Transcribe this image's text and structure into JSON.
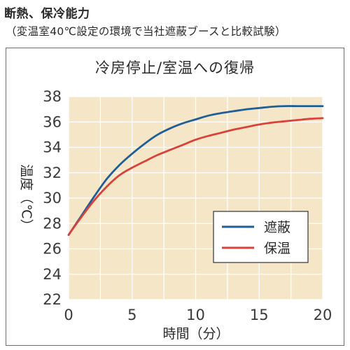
{
  "header": {
    "title": "断熱、保冷能力",
    "subtitle": "（変温室40℃設定の環境で当社遮蔽ブースと比較試験）"
  },
  "chart_data": {
    "type": "line",
    "title": "冷房停止/室温への復帰",
    "xlabel": "時間（分）",
    "ylabel": "温度（℃）",
    "xlim": [
      0,
      20
    ],
    "ylim": [
      22,
      38
    ],
    "xticks": [
      0,
      5,
      10,
      15,
      20
    ],
    "yticks": [
      22,
      24,
      26,
      28,
      30,
      32,
      34,
      36,
      38
    ],
    "grid": true,
    "plot_background": "#f5e6c8",
    "legend_position": "bottom-right",
    "series": [
      {
        "name": "遮蔽",
        "color": "#1f5e96",
        "x": [
          0,
          1,
          2,
          3,
          4,
          5,
          6,
          7,
          8,
          9,
          10,
          11,
          12,
          13,
          14,
          15,
          16,
          17,
          18,
          19,
          20
        ],
        "y": [
          27.1,
          28.6,
          30.1,
          31.5,
          32.6,
          33.5,
          34.3,
          35.0,
          35.5,
          35.9,
          36.2,
          36.5,
          36.7,
          36.85,
          37.0,
          37.1,
          37.2,
          37.25,
          37.25,
          37.25,
          37.25
        ]
      },
      {
        "name": "保温",
        "color": "#d9423a",
        "x": [
          0,
          1,
          2,
          3,
          4,
          5,
          6,
          7,
          8,
          9,
          10,
          11,
          12,
          13,
          14,
          15,
          16,
          17,
          18,
          19,
          20
        ],
        "y": [
          27.1,
          28.5,
          29.8,
          30.9,
          31.8,
          32.4,
          32.9,
          33.4,
          33.8,
          34.2,
          34.6,
          34.9,
          35.15,
          35.4,
          35.6,
          35.8,
          35.95,
          36.05,
          36.15,
          36.25,
          36.3
        ]
      }
    ]
  }
}
